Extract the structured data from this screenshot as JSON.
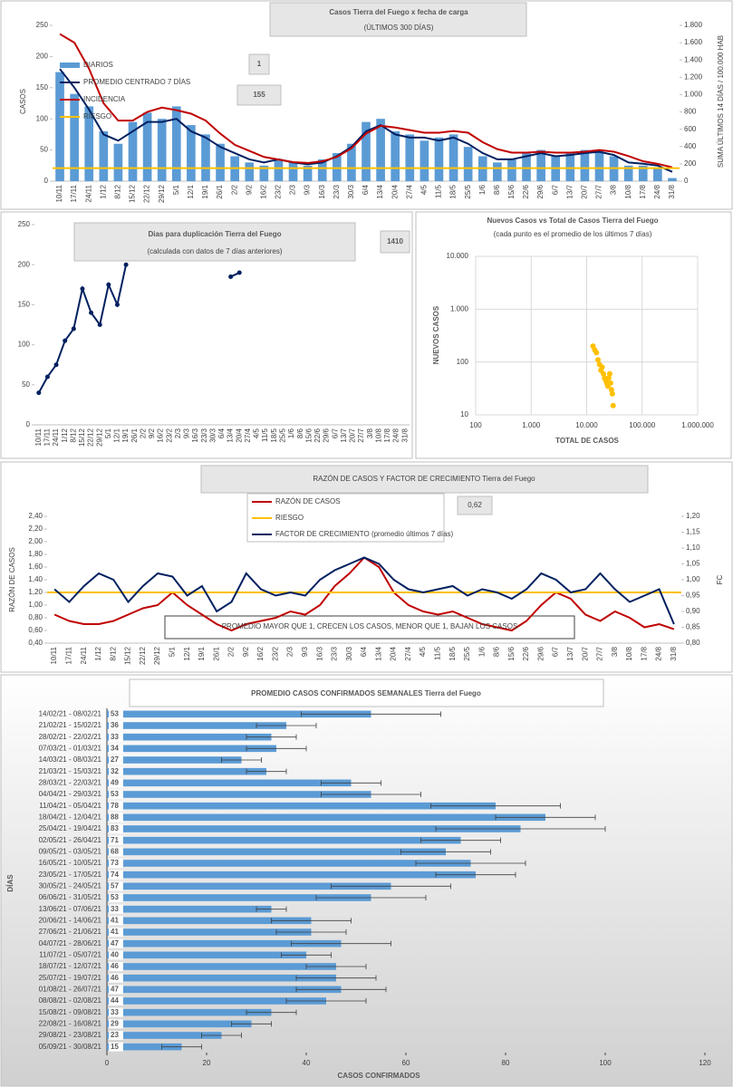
{
  "chart_data": [
    {
      "type": "combo",
      "title": "Casos Tierra del Fuego x fecha de carga",
      "subtitle": "(ÚLTIMOS 300 DÍAS)",
      "ylabel": "CASOS",
      "y2label": "SUMA ÚLTIMOS 14 DÍAS / 100.000 HAB",
      "annotations": [
        "1",
        "155"
      ],
      "categories": [
        "10/11",
        "17/11",
        "24/11",
        "1/12",
        "8/12",
        "15/12",
        "22/12",
        "29/12",
        "5/1",
        "12/1",
        "19/1",
        "26/1",
        "2/2",
        "9/2",
        "16/2",
        "23/2",
        "2/3",
        "9/3",
        "16/3",
        "23/3",
        "30/3",
        "6/4",
        "13/4",
        "20/4",
        "27/4",
        "4/5",
        "11/5",
        "18/5",
        "25/5",
        "1/6",
        "8/6",
        "15/6",
        "22/6",
        "29/6",
        "6/7",
        "13/7",
        "20/7",
        "27/7",
        "3/8",
        "10/8",
        "17/8",
        "24/8",
        "31/8"
      ],
      "ylim": [
        0,
        250
      ],
      "yticks": [
        0,
        50,
        100,
        150,
        200,
        250
      ],
      "y2lim": [
        0,
        1800
      ],
      "y2ticks": [
        0,
        200,
        400,
        600,
        800,
        {
          "value": 1000,
          "label": "1.000"
        },
        {
          "value": 1200,
          "label": "1.200"
        },
        {
          "value": 1400,
          "label": "1.400"
        },
        {
          "value": 1600,
          "label": "1.600"
        },
        {
          "value": 1800,
          "label": "1.800"
        }
      ],
      "series": [
        {
          "name": "DIARIOS",
          "type": "bar",
          "color": "#5b9bd5",
          "values": [
            175,
            140,
            120,
            80,
            60,
            95,
            110,
            100,
            120,
            90,
            75,
            60,
            40,
            30,
            25,
            35,
            30,
            25,
            35,
            45,
            60,
            95,
            100,
            80,
            75,
            65,
            70,
            75,
            55,
            40,
            30,
            35,
            45,
            50,
            40,
            45,
            50,
            50,
            40,
            25,
            25,
            20,
            5
          ]
        },
        {
          "name": "PROMEDIO CENTRADO 7 DÍAS",
          "type": "line",
          "color": "#002060",
          "values": [
            180,
            150,
            115,
            75,
            65,
            80,
            95,
            95,
            100,
            80,
            70,
            55,
            45,
            35,
            30,
            35,
            30,
            27,
            30,
            40,
            55,
            80,
            90,
            75,
            70,
            70,
            65,
            70,
            60,
            45,
            35,
            35,
            40,
            45,
            40,
            42,
            45,
            47,
            42,
            30,
            28,
            25,
            15
          ]
        },
        {
          "name": "INCIDENCIA",
          "type": "line",
          "axis": "y2",
          "color": "#c00000",
          "values": [
            1700,
            1600,
            1300,
            900,
            700,
            700,
            800,
            850,
            820,
            780,
            700,
            550,
            420,
            350,
            280,
            250,
            220,
            210,
            230,
            280,
            380,
            550,
            640,
            620,
            590,
            560,
            560,
            580,
            560,
            450,
            370,
            330,
            330,
            340,
            330,
            330,
            340,
            360,
            340,
            290,
            230,
            200,
            160
          ]
        },
        {
          "name": "RIESGO",
          "type": "hline",
          "axis": "y2",
          "color": "#ffc000",
          "value": 150
        }
      ]
    },
    {
      "type": "line",
      "title": "Dias para duplicación Tierra del Fuego",
      "subtitle": "(calculada con datos de 7 días anteriores)",
      "annotations": [
        "1410"
      ],
      "categories": [
        "10/11",
        "17/11",
        "24/11",
        "1/12",
        "8/12",
        "15/12",
        "22/12",
        "29/12",
        "5/1",
        "12/1",
        "19/1",
        "26/1",
        "2/2",
        "9/2",
        "16/2",
        "23/2",
        "2/3",
        "9/3",
        "16/3",
        "23/3",
        "30/3",
        "6/4",
        "13/4",
        "20/4",
        "27/4",
        "4/5",
        "11/5",
        "18/5",
        "25/5",
        "1/6",
        "8/6",
        "15/6",
        "22/6",
        "29/6",
        "6/7",
        "13/7",
        "20/7",
        "27/7",
        "3/8",
        "10/8",
        "17/8",
        "24/8",
        "31/8"
      ],
      "ylim": [
        0,
        250
      ],
      "yticks": [
        0,
        50,
        100,
        150,
        200,
        250
      ],
      "markers": true,
      "series": [
        {
          "type": "line",
          "color": "#002060",
          "values": [
            40,
            60,
            75,
            105,
            120,
            170,
            140,
            125,
            175,
            150,
            200,
            null,
            null,
            null,
            null,
            null,
            null,
            null,
            null,
            null,
            null,
            null,
            185,
            190,
            null,
            null,
            null,
            null,
            null,
            null,
            null,
            null,
            null,
            null,
            null,
            null,
            null,
            null,
            null,
            null,
            null,
            null,
            null
          ]
        }
      ]
    },
    {
      "type": "scatter",
      "title": "Nuevos Casos vs Total de Casos Tierra del Fuego",
      "subtitle": "(cada punto es el promedio de los últimos 7 días)",
      "xlabel": "TOTAL DE CASOS",
      "ylabel": "NUEVOS CASOS",
      "log_x": true,
      "log_y": true,
      "grid": true,
      "color": "#ffc000",
      "xlim": [
        100,
        1000000
      ],
      "xticks": [
        100,
        {
          "value": 1000,
          "label": "1.000"
        },
        {
          "value": 10000,
          "label": "10.000"
        },
        {
          "value": 100000,
          "label": "100.000"
        },
        {
          "value": 1000000,
          "label": "1.000.000"
        }
      ],
      "ylim": [
        10,
        10000
      ],
      "yticks": [
        10,
        100,
        {
          "value": 1000,
          "label": "1.000"
        },
        {
          "value": 10000,
          "label": "10.000"
        }
      ],
      "x": [
        13000,
        14000,
        15000,
        16000,
        17000,
        18000,
        19000,
        20000,
        21000,
        22000,
        23000,
        24000,
        25000,
        26000,
        27000,
        28000,
        29000,
        30000
      ],
      "values": [
        200,
        170,
        150,
        110,
        90,
        70,
        80,
        60,
        50,
        45,
        40,
        35,
        50,
        60,
        40,
        30,
        25,
        15
      ]
    },
    {
      "type": "line",
      "title": "RAZÓN DE CASOS Y FACTOR DE CRECIMIENTO Tierra del Fuego",
      "ylabel": "RAZÓN DE CASOS",
      "y2label": "FC",
      "annotations": [
        "0,62",
        "PROMEDIO MAYOR QUE 1, CRECEN LOS CASOS, MENOR QUE 1, BAJAN LOS CASOS"
      ],
      "categories": [
        "10/11",
        "17/11",
        "24/11",
        "1/12",
        "8/12",
        "15/12",
        "22/12",
        "29/12",
        "5/1",
        "12/1",
        "19/1",
        "26/1",
        "2/2",
        "9/2",
        "16/2",
        "23/2",
        "2/3",
        "9/3",
        "16/3",
        "23/3",
        "30/3",
        "6/4",
        "13/4",
        "20/4",
        "27/4",
        "4/5",
        "11/5",
        "18/5",
        "25/5",
        "1/6",
        "8/6",
        "15/6",
        "22/6",
        "29/6",
        "6/7",
        "13/7",
        "20/7",
        "27/7",
        "3/8",
        "10/8",
        "17/8",
        "24/8",
        "31/8"
      ],
      "ylim": [
        0.4,
        2.4
      ],
      "yticks": [
        {
          "value": 0.4,
          "label": "0,40"
        },
        {
          "value": 0.6,
          "label": "0,60"
        },
        {
          "value": 0.8,
          "label": "0,80"
        },
        {
          "value": 1.0,
          "label": "1,00"
        },
        {
          "value": 1.2,
          "label": "1,20"
        },
        {
          "value": 1.4,
          "label": "1,40"
        },
        {
          "value": 1.6,
          "label": "1,60"
        },
        {
          "value": 1.8,
          "label": "1,80"
        },
        {
          "value": 2.0,
          "label": "2,00"
        },
        {
          "value": 2.2,
          "label": "2,20"
        },
        {
          "value": 2.4,
          "label": "2,40"
        }
      ],
      "y2lim": [
        0.8,
        1.2
      ],
      "y2ticks": [
        {
          "value": 0.8,
          "label": "0,80"
        },
        {
          "value": 0.85,
          "label": "0,85"
        },
        {
          "value": 0.9,
          "label": "0,90"
        },
        {
          "value": 0.95,
          "label": "0,95"
        },
        {
          "value": 1.0,
          "label": "1,00"
        },
        {
          "value": 1.05,
          "label": "1,05"
        },
        {
          "value": 1.1,
          "label": "1,10"
        },
        {
          "value": 1.15,
          "label": "1,15"
        },
        {
          "value": 1.2,
          "label": "1,20"
        }
      ],
      "series": [
        {
          "name": "RAZÓN DE CASOS",
          "type": "line",
          "color": "#c00000",
          "values": [
            0.85,
            0.75,
            0.7,
            0.7,
            0.75,
            0.85,
            0.95,
            1.0,
            1.2,
            1.0,
            0.85,
            0.7,
            0.6,
            0.7,
            0.75,
            0.8,
            0.9,
            0.85,
            1.0,
            1.3,
            1.5,
            1.75,
            1.6,
            1.2,
            1.0,
            0.9,
            0.85,
            0.9,
            0.8,
            0.7,
            0.65,
            0.6,
            0.75,
            1.0,
            1.2,
            1.1,
            0.85,
            0.75,
            0.9,
            0.8,
            0.65,
            0.7,
            0.62
          ]
        },
        {
          "name": "RIESGO",
          "type": "hline",
          "color": "#ffc000",
          "value": 1.2
        },
        {
          "name": "FACTOR DE CRECIMIENTO (promedio últimos 7 días)",
          "type": "line",
          "axis": "y2",
          "color": "#002060",
          "values": [
            0.97,
            0.93,
            0.98,
            1.02,
            1.0,
            0.93,
            0.98,
            1.02,
            1.01,
            0.95,
            0.98,
            0.9,
            0.93,
            1.02,
            0.97,
            0.95,
            0.96,
            0.95,
            1.0,
            1.03,
            1.05,
            1.07,
            1.05,
            1.0,
            0.97,
            0.96,
            0.97,
            0.98,
            0.95,
            0.97,
            0.96,
            0.94,
            0.97,
            1.02,
            1.0,
            0.96,
            0.97,
            1.02,
            0.97,
            0.93,
            0.95,
            0.97,
            0.86
          ]
        }
      ]
    },
    {
      "type": "hbar",
      "title": "PROMEDIO CASOS CONFIRMADOS SEMANALES Tierra del Fuego",
      "xlabel": "CASOS CONFIRMADOS",
      "ylabel": "DÍAS",
      "color": "#5b9bd5",
      "xlim": [
        0,
        120
      ],
      "xticks": [
        0,
        20,
        40,
        60,
        80,
        100,
        120
      ],
      "categories": [
        "14/02/21 - 08/02/21",
        "21/02/21 - 15/02/21",
        "28/02/21 - 22/02/21",
        "07/03/21 - 01/03/21",
        "14/03/21 - 08/03/21",
        "21/03/21 - 15/03/21",
        "28/03/21 - 22/03/21",
        "04/04/21 - 29/03/21",
        "11/04/21 - 05/04/21",
        "18/04/21 - 12/04/21",
        "25/04/21 - 19/04/21",
        "02/05/21 - 26/04/21",
        "09/05/21 - 03/05/21",
        "16/05/21 - 10/05/21",
        "23/05/21 - 17/05/21",
        "30/05/21 - 24/05/21",
        "06/06/21 - 31/05/21",
        "13/06/21 - 07/06/21",
        "20/06/21 - 14/06/21",
        "27/06/21 - 21/06/21",
        "04/07/21 - 28/06/21",
        "11/07/21 - 05/07/21",
        "18/07/21 - 12/07/21",
        "25/07/21 - 19/07/21",
        "01/08/21 - 26/07/21",
        "08/08/21 - 02/08/21",
        "15/08/21 - 09/08/21",
        "22/08/21 - 16/08/21",
        "29/08/21 - 23/08/21",
        "05/09/21 - 30/08/21"
      ],
      "values": [
        53,
        36,
        33,
        34,
        27,
        32,
        49,
        53,
        78,
        88,
        83,
        71,
        68,
        73,
        74,
        57,
        53,
        33,
        41,
        41,
        47,
        40,
        46,
        46,
        47,
        44,
        33,
        29,
        23,
        15
      ],
      "errors": [
        14,
        6,
        5,
        6,
        4,
        4,
        6,
        10,
        13,
        10,
        17,
        8,
        9,
        11,
        8,
        12,
        11,
        3,
        8,
        7,
        10,
        5,
        6,
        8,
        9,
        8,
        5,
        4,
        4,
        4
      ]
    }
  ]
}
